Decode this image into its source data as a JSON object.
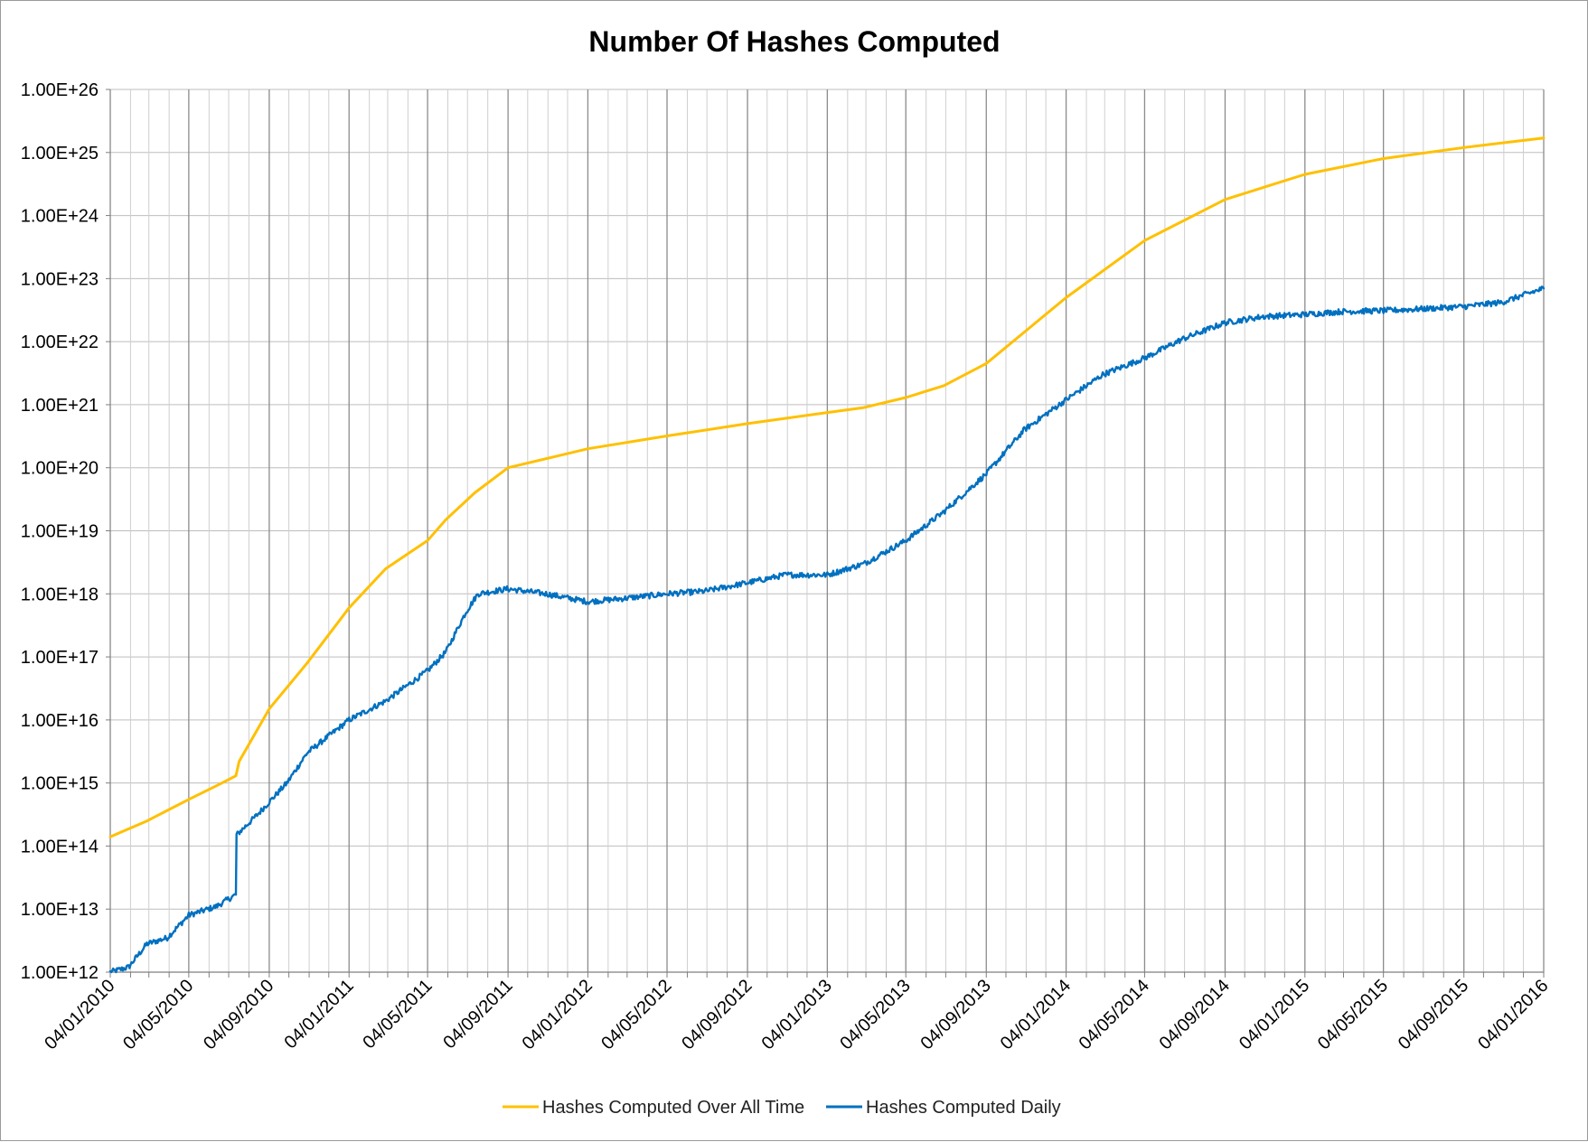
{
  "chart_data": {
    "type": "line",
    "title": "Number Of Hashes Computed",
    "xlabel": "",
    "ylabel": "",
    "y_scale": "log10",
    "ylim": [
      1000000000000.0,
      1e+26
    ],
    "y_tick_labels": [
      "1.00E+12",
      "1.00E+13",
      "1.00E+14",
      "1.00E+15",
      "1.00E+16",
      "1.00E+17",
      "1.00E+18",
      "1.00E+19",
      "1.00E+20",
      "1.00E+21",
      "1.00E+22",
      "1.00E+23",
      "1.00E+24",
      "1.00E+25",
      "1.00E+26"
    ],
    "x_tick_labels": [
      "04/01/2010",
      "04/05/2010",
      "04/09/2010",
      "04/01/2011",
      "04/05/2011",
      "04/09/2011",
      "04/01/2012",
      "04/05/2012",
      "04/09/2012",
      "04/01/2013",
      "04/05/2013",
      "04/09/2013",
      "04/01/2014",
      "04/05/2014",
      "04/09/2014",
      "04/01/2015",
      "04/05/2015",
      "04/09/2015",
      "04/01/2016"
    ],
    "grid": true,
    "legend": "bottom",
    "series": [
      {
        "name": "Hashes Computed Over All Time",
        "color": "#FFC000",
        "x": [
          "2010-01-04",
          "2010-03-01",
          "2010-05-04",
          "2010-06-15",
          "2010-07-15",
          "2010-07-20",
          "2010-09-04",
          "2010-11-01",
          "2011-01-04",
          "2011-03-01",
          "2011-05-04",
          "2011-06-01",
          "2011-07-15",
          "2011-09-04",
          "2012-01-04",
          "2012-05-04",
          "2012-09-04",
          "2013-01-04",
          "2013-03-01",
          "2013-05-04",
          "2013-07-01",
          "2013-09-04",
          "2014-01-04",
          "2014-05-04",
          "2014-09-04",
          "2015-01-04",
          "2015-05-04",
          "2015-09-04",
          "2016-01-04"
        ],
        "values": [
          140000000000000.0,
          250000000000000.0,
          550000000000000.0,
          900000000000000.0,
          1300000000000000.0,
          2200000000000000.0,
          1.5e+16,
          8e+16,
          6e+17,
          2.5e+18,
          7e+18,
          1.5e+19,
          4e+19,
          1e+20,
          2e+20,
          3.2e+20,
          5e+20,
          7.5e+20,
          9e+20,
          1.3e+21,
          2e+21,
          4.5e+21,
          5e+22,
          4e+23,
          1.8e+24,
          4.5e+24,
          8e+24,
          1.2e+25,
          1.7e+25
        ]
      },
      {
        "name": "Hashes Computed Daily",
        "color": "#0070C0",
        "x": [
          "2010-01-04",
          "2010-02-01",
          "2010-03-01",
          "2010-04-01",
          "2010-05-04",
          "2010-06-15",
          "2010-07-15",
          "2010-07-16",
          "2010-08-15",
          "2010-09-04",
          "2010-10-01",
          "2010-11-01",
          "2011-01-04",
          "2011-03-01",
          "2011-05-04",
          "2011-06-01",
          "2011-07-01",
          "2011-07-20",
          "2011-09-04",
          "2011-11-01",
          "2012-01-04",
          "2012-03-01",
          "2012-05-04",
          "2012-07-01",
          "2012-09-04",
          "2012-11-01",
          "2013-01-04",
          "2013-03-01",
          "2013-05-04",
          "2013-07-01",
          "2013-09-04",
          "2013-11-01",
          "2014-01-04",
          "2014-03-01",
          "2014-05-04",
          "2014-07-01",
          "2014-09-04",
          "2014-11-01",
          "2015-01-04",
          "2015-03-01",
          "2015-05-04",
          "2015-07-01",
          "2015-09-04",
          "2015-11-01",
          "2016-01-04"
        ],
        "values": [
          1000000000000.0,
          1200000000000.0,
          2800000000000.0,
          3500000000000.0,
          8000000000000.0,
          11000000000000.0,
          17000000000000.0,
          150000000000000.0,
          300000000000000.0,
          500000000000000.0,
          1000000000000000.0,
          3000000000000000.0,
          1e+16,
          2e+16,
          6e+16,
          1.2e+17,
          5e+17,
          1e+18,
          1.2e+18,
          1e+18,
          7.5e+17,
          8.5e+17,
          1e+18,
          1.1e+18,
          1.5e+18,
          2e+18,
          2e+18,
          3e+18,
          7e+18,
          2e+19,
          8e+19,
          4e+20,
          1.2e+21,
          3e+21,
          5.5e+21,
          1.1e+22,
          2e+22,
          2.5e+22,
          2.7e+22,
          3e+22,
          3.1e+22,
          3.3e+22,
          3.6e+22,
          4.2e+22,
          7e+22
        ]
      }
    ]
  }
}
